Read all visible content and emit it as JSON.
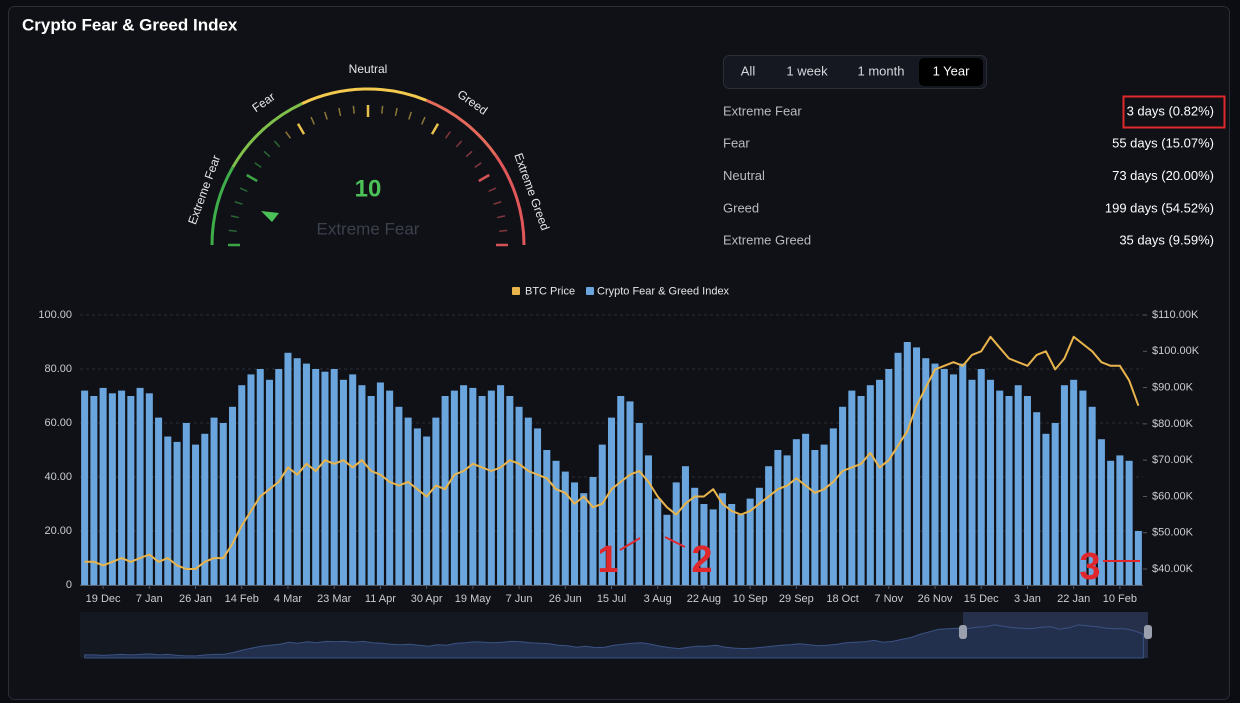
{
  "header": {
    "title": "Crypto Fear & Greed Index"
  },
  "gauge": {
    "value": 10,
    "status": "Extreme Fear",
    "labels": [
      "Extreme Fear",
      "Fear",
      "Neutral",
      "Greed",
      "Extreme Greed"
    ]
  },
  "tabs": [
    "All",
    "1 week",
    "1 month",
    "1 Year"
  ],
  "active_tab": 3,
  "stats": [
    {
      "label": "Extreme Fear",
      "value": "3 days (0.82%)"
    },
    {
      "label": "Fear",
      "value": "55 days (15.07%)"
    },
    {
      "label": "Neutral",
      "value": "73 days (20.00%)"
    },
    {
      "label": "Greed",
      "value": "199 days (54.52%)"
    },
    {
      "label": "Extreme Greed",
      "value": "35 days (9.59%)"
    }
  ],
  "chart_data": {
    "type": "bar",
    "categories": [
      null,
      null,
      "19 Dec",
      null,
      null,
      null,
      null,
      "7 Jan",
      null,
      null,
      null,
      null,
      "26 Jan",
      null,
      null,
      null,
      null,
      "14 Feb",
      null,
      null,
      null,
      null,
      "4 Mar",
      null,
      null,
      null,
      null,
      "23 Mar",
      null,
      null,
      null,
      null,
      "11 Apr",
      null,
      null,
      null,
      null,
      "30 Apr",
      null,
      null,
      null,
      null,
      "19 May",
      null,
      null,
      null,
      null,
      "7 Jun",
      null,
      null,
      null,
      null,
      "26 Jun",
      null,
      null,
      null,
      null,
      "15 Jul",
      null,
      null,
      null,
      null,
      "3 Aug",
      null,
      null,
      null,
      null,
      "22 Aug",
      null,
      null,
      null,
      null,
      "10 Sep",
      null,
      null,
      null,
      null,
      "29 Sep",
      null,
      null,
      null,
      null,
      "18 Oct",
      null,
      null,
      null,
      null,
      "7 Nov",
      null,
      null,
      null,
      null,
      "26 Nov",
      null,
      null,
      null,
      null,
      "15 Dec",
      null,
      null,
      null,
      null,
      "3 Jan",
      null,
      null,
      null,
      null,
      "22 Jan",
      null,
      null,
      null,
      null,
      "10 Feb",
      null,
      null
    ],
    "series": [
      {
        "name": "BTC Price",
        "type": "line",
        "axis": "y2",
        "color": "#e9b44c",
        "values": [
          42000,
          42000,
          41000,
          42000,
          43000,
          42000,
          43000,
          44000,
          42000,
          43000,
          41000,
          40000,
          40000,
          42000,
          43000,
          43000,
          47000,
          52000,
          56000,
          60000,
          62000,
          64000,
          68000,
          66000,
          69000,
          67000,
          70000,
          69000,
          70000,
          68000,
          70000,
          67000,
          66000,
          64000,
          63000,
          64000,
          62000,
          60000,
          63000,
          62000,
          66000,
          67000,
          69000,
          68000,
          67000,
          68000,
          70000,
          69000,
          67000,
          66000,
          65000,
          62000,
          61000,
          58000,
          60000,
          57000,
          58000,
          62000,
          64000,
          66000,
          67000,
          64000,
          60000,
          57000,
          55000,
          58000,
          60000,
          60000,
          62000,
          58000,
          56000,
          55000,
          56000,
          58000,
          60000,
          62000,
          63000,
          65000,
          63000,
          61000,
          62000,
          64000,
          67000,
          68000,
          69000,
          72000,
          68000,
          70000,
          74000,
          78000,
          85000,
          90000,
          95000,
          96000,
          97000,
          96000,
          99000,
          100000,
          104000,
          101000,
          98000,
          97000,
          96000,
          99000,
          100000,
          95000,
          98000,
          104000,
          102000,
          100000,
          97000,
          96000,
          96000,
          92000,
          85000
        ]
      },
      {
        "name": "Crypto Fear & Greed Index",
        "type": "bar",
        "color": "#6aa5dd",
        "values": [
          72,
          70,
          73,
          71,
          72,
          70,
          73,
          71,
          62,
          55,
          53,
          60,
          52,
          56,
          62,
          60,
          66,
          74,
          78,
          80,
          76,
          80,
          86,
          84,
          82,
          80,
          79,
          80,
          76,
          78,
          74,
          70,
          75,
          72,
          66,
          62,
          58,
          55,
          62,
          70,
          72,
          74,
          73,
          70,
          72,
          74,
          70,
          66,
          62,
          58,
          50,
          46,
          42,
          38,
          34,
          40,
          52,
          62,
          70,
          68,
          60,
          48,
          32,
          26,
          38,
          44,
          36,
          30,
          28,
          34,
          30,
          26,
          32,
          36,
          44,
          50,
          48,
          54,
          56,
          50,
          52,
          58,
          66,
          72,
          70,
          74,
          76,
          80,
          86,
          90,
          88,
          84,
          82,
          80,
          78,
          82,
          76,
          80,
          76,
          72,
          70,
          74,
          70,
          64,
          56,
          60,
          74,
          76,
          72,
          66,
          54,
          46,
          48,
          46,
          20
        ]
      }
    ],
    "ylim": [
      0,
      100
    ],
    "yticks": [
      0,
      {
        "value": 20,
        "label": "20.00"
      },
      {
        "value": 40,
        "label": "40.00"
      },
      {
        "value": 60,
        "label": "60.00"
      },
      {
        "value": 80,
        "label": "80.00"
      },
      {
        "value": 100,
        "label": "100.00"
      }
    ],
    "y2lim": [
      35600,
      110000
    ],
    "y2ticks": [
      {
        "value": 40000,
        "label": "$40.00K"
      },
      {
        "value": 50000,
        "label": "$50.00K"
      },
      {
        "value": 60000,
        "label": "$60.00K"
      },
      {
        "value": 70000,
        "label": "$70.00K"
      },
      {
        "value": 80000,
        "label": "$80.00K"
      },
      {
        "value": 90000,
        "label": "$90.00K"
      },
      {
        "value": 100000,
        "label": "$100.00K"
      },
      {
        "value": 110000,
        "label": "$110.00K"
      }
    ],
    "grid": true,
    "annotations": [
      "1",
      "2",
      "3"
    ]
  }
}
